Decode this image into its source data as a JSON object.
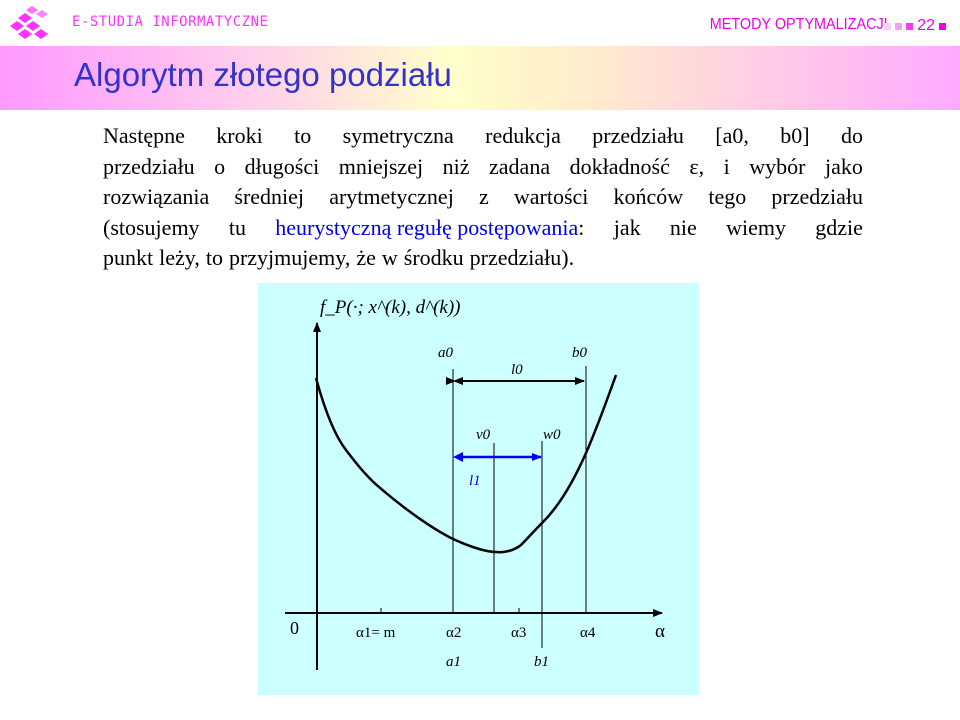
{
  "header": {
    "brand": "E-STUDIA INFORMATYCZNE",
    "course": "METODY OPTYMALIZACJI",
    "page_number": "22",
    "pager_colors": [
      "#ffccff",
      "#ff99ff",
      "#ff33ff",
      "#ee00ee"
    ]
  },
  "slide": {
    "title": "Algorytm złotego podziału"
  },
  "body": {
    "lines": [
      [
        "Następne",
        "kroki",
        "to",
        "symetryczna",
        "redukcja",
        "przedziału",
        "[a0,",
        "b0]",
        "do"
      ],
      [
        "przedziału",
        "o",
        "długości",
        "mniejszej",
        "niż",
        "zadana",
        "dokładność",
        "ε,",
        "i",
        "wybór",
        "jako"
      ],
      [
        "rozwiązania",
        "średniej",
        "arytmetycznej",
        "z",
        "wartości",
        "końców",
        "tego",
        "przedziału"
      ],
      [
        "(stosujemy",
        "tu",
        "heurystyczną regułę postępowania:",
        "jak",
        "nie",
        "wiemy",
        "gdzie"
      ],
      [
        "punkt",
        "leży,",
        "to",
        "przyjmujemy,",
        "że",
        "w",
        "środku",
        "przedziału)."
      ]
    ],
    "highlight": "heurystyczną regułę postępowania",
    "highlight_color": "#0000ee"
  },
  "diagram": {
    "y_axis_label": "f_P(·; x^(k), d^(k))",
    "x_axis_label": "α",
    "origin_label": "0",
    "labels": {
      "a0": "a0",
      "b0": "b0",
      "l0": "l0",
      "v0": "v0",
      "w0": "w0",
      "l1": "l1",
      "alpha1": "α1= m",
      "alpha2": "α2",
      "alpha3": "α3",
      "alpha4": "α4",
      "a1": "a1",
      "b1": "b1"
    },
    "background": "#ccffff",
    "l1_color": "#0000ee"
  }
}
